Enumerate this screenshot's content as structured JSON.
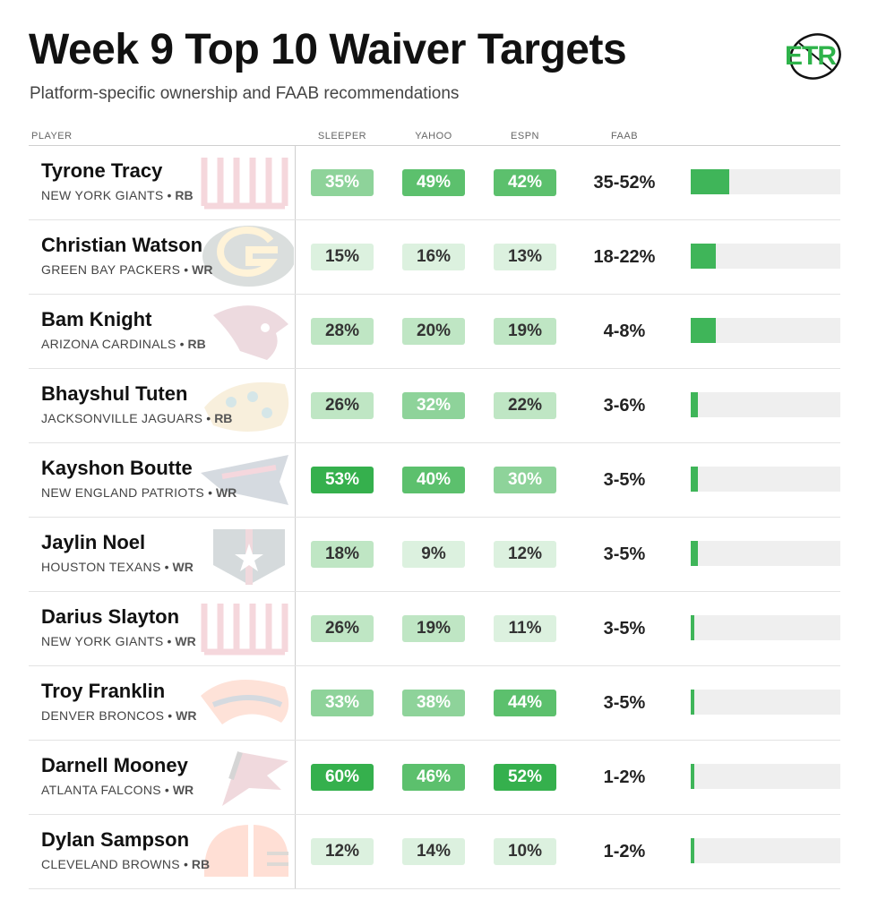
{
  "title": "Week 9 Top 10 Waiver Targets",
  "subtitle": "Platform-specific ownership and FAAB recommendations",
  "logo_text": "ETR",
  "colors": {
    "accent": "#2eb34a",
    "bar": "#3fb559",
    "bar_track": "#efefef"
  },
  "chart_data": {
    "type": "table",
    "columns": [
      "PLAYER",
      "SLEEPER",
      "YAHOO",
      "ESPN",
      "FAAB"
    ],
    "rows": [
      {
        "player": "Tyrone Tracy",
        "team": "NEW YORK GIANTS",
        "pos": "RB",
        "team_logo": "giants-logo-icon",
        "sleeper": "35%",
        "yahoo": "49%",
        "espn": "42%",
        "faab": "35-52%",
        "faab_level": 0.26
      },
      {
        "player": "Christian Watson",
        "team": "GREEN BAY PACKERS",
        "pos": "WR",
        "team_logo": "packers-logo-icon",
        "sleeper": "15%",
        "yahoo": "16%",
        "espn": "13%",
        "faab": "18-22%",
        "faab_level": 0.17
      },
      {
        "player": "Bam Knight",
        "team": "ARIZONA CARDINALS",
        "pos": "RB",
        "team_logo": "cardinals-logo-icon",
        "sleeper": "28%",
        "yahoo": "20%",
        "espn": "19%",
        "faab": "4-8%",
        "faab_level": 0.17
      },
      {
        "player": "Bhayshul Tuten",
        "team": "JACKSONVILLE JAGUARS",
        "pos": "RB",
        "team_logo": "jaguars-logo-icon",
        "sleeper": "26%",
        "yahoo": "32%",
        "espn": "22%",
        "faab": "3-6%",
        "faab_level": 0.05
      },
      {
        "player": "Kayshon Boutte",
        "team": "NEW ENGLAND PATRIOTS",
        "pos": "WR",
        "team_logo": "patriots-logo-icon",
        "sleeper": "53%",
        "yahoo": "40%",
        "espn": "30%",
        "faab": "3-5%",
        "faab_level": 0.05
      },
      {
        "player": "Jaylin Noel",
        "team": "HOUSTON TEXANS",
        "pos": "WR",
        "team_logo": "texans-logo-icon",
        "sleeper": "18%",
        "yahoo": "9%",
        "espn": "12%",
        "faab": "3-5%",
        "faab_level": 0.05
      },
      {
        "player": "Darius Slayton",
        "team": "NEW YORK GIANTS",
        "pos": "WR",
        "team_logo": "giants-logo-icon",
        "sleeper": "26%",
        "yahoo": "19%",
        "espn": "11%",
        "faab": "3-5%",
        "faab_level": 0.02
      },
      {
        "player": "Troy Franklin",
        "team": "DENVER BRONCOS",
        "pos": "WR",
        "team_logo": "broncos-logo-icon",
        "sleeper": "33%",
        "yahoo": "38%",
        "espn": "44%",
        "faab": "3-5%",
        "faab_level": 0.02
      },
      {
        "player": "Darnell Mooney",
        "team": "ATLANTA FALCONS",
        "pos": "WR",
        "team_logo": "falcons-logo-icon",
        "sleeper": "60%",
        "yahoo": "46%",
        "espn": "52%",
        "faab": "1-2%",
        "faab_level": 0.02
      },
      {
        "player": "Dylan Sampson",
        "team": "CLEVELAND BROWNS",
        "pos": "RB",
        "team_logo": "browns-logo-icon",
        "sleeper": "12%",
        "yahoo": "14%",
        "espn": "10%",
        "faab": "1-2%",
        "faab_level": 0.02
      }
    ]
  }
}
